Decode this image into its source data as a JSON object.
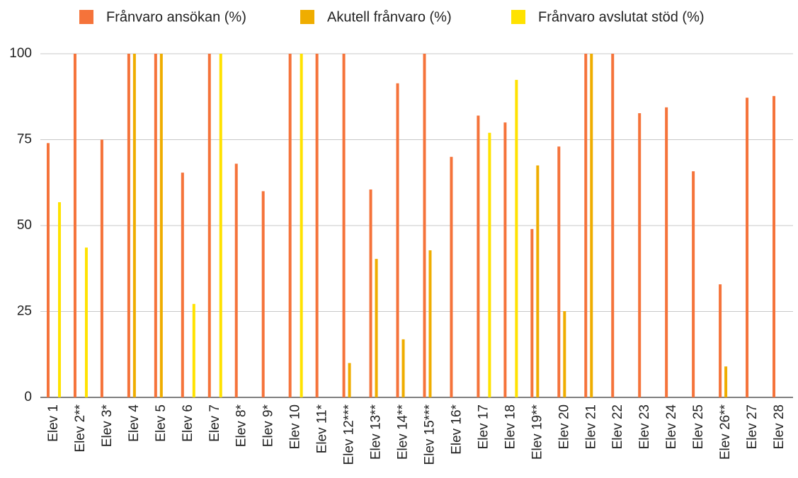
{
  "chart_data": {
    "type": "bar",
    "categories": [
      "Elev 1",
      "Elev 2**",
      "Elev 3*",
      "Elev 4",
      "Elev 5",
      "Elev 6",
      "Elev 7",
      "Elev 8*",
      "Elev 9*",
      "Elev 10",
      "Elev 11*",
      "Elev 12***",
      "Elev 13**",
      "Elev 14**",
      "Elev 15***",
      "Elev 16*",
      "Elev 17",
      "Elev 18",
      "Elev 19**",
      "Elev 20",
      "Elev 21",
      "Elev 22",
      "Elev 23",
      "Elev 24",
      "Elev 25",
      "Elev 26**",
      "Elev 27",
      "Elev 28"
    ],
    "series": [
      {
        "name": "Frånvaro ansökan (%)",
        "color": "#f5733a",
        "values": [
          74,
          100,
          75,
          100,
          100,
          65.4,
          100,
          68,
          60,
          100,
          100,
          100,
          60.5,
          91.4,
          100,
          70,
          82,
          80,
          49,
          73,
          100,
          100,
          82.7,
          84.4,
          65.8,
          32.9,
          87.2,
          87.7
        ]
      },
      {
        "name": "Akutell frånvaro (%)",
        "color": "#efad00",
        "values": [
          null,
          null,
          null,
          100,
          100,
          null,
          null,
          null,
          null,
          null,
          null,
          10,
          40.3,
          16.9,
          42.8,
          null,
          null,
          null,
          67.5,
          25.1,
          100,
          null,
          null,
          null,
          null,
          9,
          null,
          null
        ]
      },
      {
        "name": "Frånvaro avslutat stöd (%)",
        "color": "#ffe200",
        "values": [
          56.8,
          43.6,
          null,
          null,
          null,
          27.2,
          100,
          null,
          null,
          100,
          null,
          null,
          null,
          null,
          null,
          null,
          77,
          92.4,
          null,
          null,
          null,
          null,
          null,
          null,
          null,
          null,
          null,
          null
        ]
      }
    ],
    "ylim": [
      0,
      100
    ],
    "yticks": [
      0,
      25,
      50,
      75,
      100
    ],
    "grid": true,
    "legend": "top"
  }
}
